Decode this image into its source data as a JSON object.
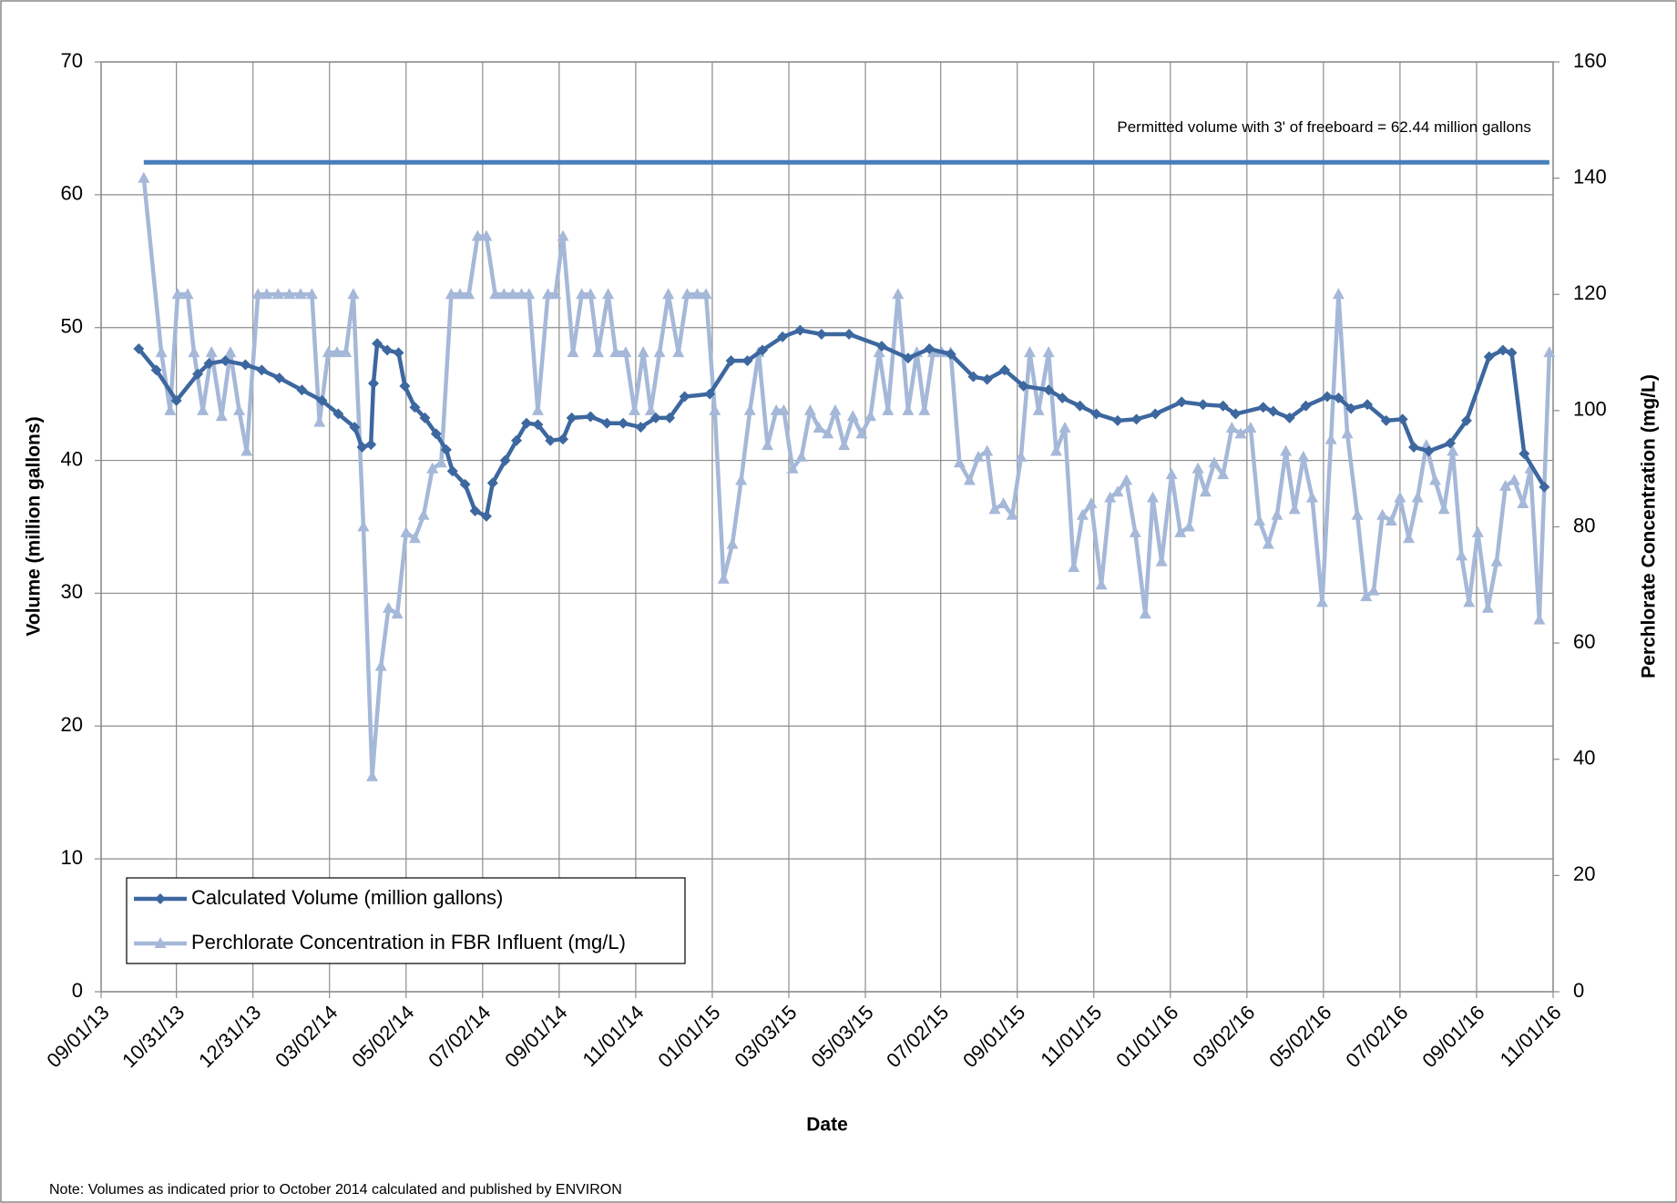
{
  "chart_data": {
    "type": "line",
    "xlabel": "Date",
    "ylabel": "Volume (million gallons)",
    "y2label": "Perchlorate Concentration (mg/L)",
    "note": "Note: Volumes as indicated prior to October 2014 calculated and published by ENVIRON",
    "reference_line": {
      "value": 62.44,
      "label": "Permitted volume with 3' of freeboard = 62.44 million gallons",
      "color": "#4a7ebb"
    },
    "xlim": [
      "09/01/13",
      "11/01/16"
    ],
    "xticks": [
      "09/01/13",
      "10/31/13",
      "12/31/13",
      "03/02/14",
      "05/02/14",
      "07/02/14",
      "09/01/14",
      "11/01/14",
      "01/01/15",
      "03/03/15",
      "05/03/15",
      "07/02/15",
      "09/01/15",
      "11/01/15",
      "01/01/16",
      "03/02/16",
      "05/02/16",
      "07/02/16",
      "09/01/16",
      "11/01/16"
    ],
    "ylim": [
      0,
      70
    ],
    "yticks": [
      0,
      10,
      20,
      30,
      40,
      50,
      60,
      70
    ],
    "y2lim": [
      0,
      160
    ],
    "y2ticks": [
      0,
      20,
      40,
      60,
      80,
      100,
      120,
      140,
      160
    ],
    "grid": true,
    "legend": "bottom-left",
    "series": [
      {
        "name": "Calculated Volume (million gallons)",
        "color": "#3d679f",
        "marker": "diamond",
        "x": [
          "10/01/13",
          "10/15/13",
          "10/31/13",
          "11/17/13",
          "11/26/13",
          "12/09/13",
          "12/25/13",
          "01/07/14",
          "01/21/14",
          "02/08/14",
          "02/24/14",
          "03/09/14",
          "03/22/14",
          "03/28/14",
          "04/04/14",
          "04/06/14",
          "04/09/14",
          "04/17/14",
          "04/26/14",
          "05/01/14",
          "05/09/14",
          "05/17/14",
          "05/26/14",
          "06/03/14",
          "06/08/14",
          "06/18/14",
          "06/26/14",
          "07/05/14",
          "07/10/14",
          "07/20/14",
          "07/29/14",
          "08/06/14",
          "08/15/14",
          "08/25/14",
          "09/04/14",
          "09/11/14",
          "09/26/14",
          "10/09/14",
          "10/22/14",
          "11/05/14",
          "11/17/14",
          "11/28/14",
          "12/10/14",
          "12/30/14",
          "01/16/15",
          "01/29/15",
          "02/10/15",
          "02/26/15",
          "03/12/15",
          "03/29/15",
          "04/20/15",
          "05/16/15",
          "06/06/15",
          "06/23/15",
          "07/10/15",
          "07/28/15",
          "08/08/15",
          "08/22/15",
          "09/06/15",
          "09/26/15",
          "10/07/15",
          "10/21/15",
          "11/03/15",
          "11/20/15",
          "12/05/15",
          "12/20/15",
          "01/10/16",
          "01/27/16",
          "02/12/16",
          "02/22/16",
          "03/15/16",
          "03/23/16",
          "04/05/16",
          "04/18/16",
          "05/05/16",
          "05/14/16",
          "05/24/16",
          "06/06/16",
          "06/21/16",
          "07/04/16",
          "07/13/16",
          "07/25/16",
          "08/11/16",
          "08/24/16",
          "09/11/16",
          "09/22/16",
          "09/29/16",
          "10/09/16",
          "10/25/16"
        ],
        "values": [
          48.4,
          46.8,
          44.5,
          46.5,
          47.3,
          47.5,
          47.2,
          46.8,
          46.2,
          45.3,
          44.5,
          43.5,
          42.5,
          41.0,
          41.2,
          45.8,
          48.8,
          48.3,
          48.1,
          45.6,
          44.0,
          43.2,
          42.0,
          40.8,
          39.2,
          38.2,
          36.2,
          35.8,
          38.3,
          40.0,
          41.5,
          42.8,
          42.7,
          41.5,
          41.6,
          43.2,
          43.3,
          42.8,
          42.8,
          42.5,
          43.2,
          43.2,
          44.8,
          45.0,
          47.5,
          47.5,
          48.3,
          49.3,
          49.8,
          49.5,
          49.5,
          48.6,
          47.7,
          48.4,
          48.0,
          46.3,
          46.1,
          46.8,
          45.6,
          45.3,
          44.7,
          44.1,
          43.5,
          43.0,
          43.1,
          43.5,
          44.4,
          44.2,
          44.1,
          43.5,
          44.0,
          43.7,
          43.2,
          44.1,
          44.8,
          44.7,
          43.9,
          44.2,
          43.0,
          43.1,
          41.0,
          40.7,
          41.3,
          43.0,
          47.8,
          48.3,
          48.1,
          40.5,
          38.0
        ]
      },
      {
        "name": "Perchlorate Concentration in FBR Influent (mg/L)",
        "color": "#a5b8d8",
        "marker": "triangle",
        "axis": "y2",
        "x": [
          "10/05/13",
          "10/19/13",
          "10/26/13",
          "11/01/13",
          "11/09/13",
          "11/14/13",
          "11/21/13",
          "11/28/13",
          "12/06/13",
          "12/13/13",
          "12/20/13",
          "12/26/13",
          "01/04/14",
          "01/11/14",
          "01/20/14",
          "01/29/14",
          "02/07/14",
          "02/16/14",
          "02/22/14",
          "03/01/14",
          "03/08/14",
          "03/15/14",
          "03/21/14",
          "03/29/14",
          "04/05/14",
          "04/12/14",
          "04/18/14",
          "04/25/14",
          "05/02/14",
          "05/09/14",
          "05/16/14",
          "05/23/14",
          "05/30/14",
          "06/07/14",
          "06/14/14",
          "06/21/14",
          "06/28/14",
          "07/05/14",
          "07/12/14",
          "07/19/14",
          "07/26/14",
          "08/02/14",
          "08/08/14",
          "08/15/14",
          "08/23/14",
          "08/29/14",
          "09/04/14",
          "09/12/14",
          "09/19/14",
          "09/26/14",
          "10/02/14",
          "10/10/14",
          "10/16/14",
          "10/24/14",
          "10/31/14",
          "11/07/14",
          "11/13/14",
          "11/20/14",
          "11/27/14",
          "12/05/14",
          "12/12/14",
          "12/20/14",
          "12/27/14",
          "01/03/15",
          "01/10/15",
          "01/17/15",
          "01/24/15",
          "01/31/15",
          "02/07/15",
          "02/14/15",
          "02/21/15",
          "02/27/15",
          "03/06/15",
          "03/13/15",
          "03/20/15",
          "03/27/15",
          "04/03/15",
          "04/09/15",
          "04/16/15",
          "04/23/15",
          "04/30/15",
          "05/07/15",
          "05/14/15",
          "05/21/15",
          "05/29/15",
          "06/06/15",
          "06/13/15",
          "06/19/15",
          "06/26/15",
          "07/03/15",
          "07/10/15",
          "07/17/15",
          "07/25/15",
          "08/01/15",
          "08/08/15",
          "08/14/15",
          "08/21/15",
          "08/28/15",
          "09/04/15",
          "09/11/15",
          "09/18/15",
          "09/26/15",
          "10/02/15",
          "10/09/15",
          "10/16/15",
          "10/23/15",
          "10/30/15",
          "11/07/15",
          "11/14/15",
          "11/20/15",
          "11/27/15",
          "12/04/15",
          "12/12/15",
          "12/18/15",
          "12/25/15",
          "01/02/16",
          "01/09/16",
          "01/16/16",
          "01/23/16",
          "01/29/16",
          "02/05/16",
          "02/12/16",
          "02/19/16",
          "02/26/16",
          "03/05/16",
          "03/12/16",
          "03/19/16",
          "03/26/16",
          "04/02/16",
          "04/09/16",
          "04/16/16",
          "04/23/16",
          "05/01/16",
          "05/08/16",
          "05/14/16",
          "05/21/16",
          "05/29/16",
          "06/05/16",
          "06/11/16",
          "06/18/16",
          "06/25/16",
          "07/02/16",
          "07/09/16",
          "07/16/16",
          "07/23/16",
          "07/30/16",
          "08/06/16",
          "08/13/16",
          "08/20/16",
          "08/26/16",
          "09/02/16",
          "09/10/16",
          "09/17/16",
          "09/24/16",
          "10/01/16",
          "10/08/16",
          "10/14/16",
          "10/21/16",
          "10/29/16"
        ],
        "values": [
          140,
          110,
          100,
          120,
          120,
          110,
          100,
          110,
          99,
          110,
          100,
          93,
          120,
          120,
          120,
          120,
          120,
          120,
          98,
          110,
          110,
          110,
          120,
          80,
          37,
          56,
          66,
          65,
          79,
          78,
          82,
          90,
          91,
          120,
          120,
          120,
          130,
          130,
          120,
          120,
          120,
          120,
          120,
          100,
          120,
          120,
          130,
          110,
          120,
          120,
          110,
          120,
          110,
          110,
          100,
          110,
          100,
          110,
          120,
          110,
          120,
          120,
          120,
          100,
          71,
          77,
          88,
          100,
          110,
          94,
          100,
          100,
          90,
          92,
          100,
          97,
          96,
          100,
          94,
          99,
          96,
          99,
          110,
          100,
          120,
          100,
          110,
          100,
          110,
          110,
          110,
          91,
          88,
          92,
          93,
          83,
          84,
          82,
          92,
          110,
          100,
          110,
          93,
          97,
          73,
          82,
          84,
          70,
          85,
          86,
          88,
          79,
          65,
          85,
          74,
          89,
          79,
          80,
          90,
          86,
          91,
          89,
          97,
          96,
          97,
          81,
          77,
          82,
          93,
          83,
          92,
          85,
          67,
          95,
          120,
          96,
          82,
          68,
          69,
          82,
          81,
          85,
          78,
          85,
          94,
          88,
          83,
          93,
          75,
          67,
          79,
          66,
          74,
          87,
          88,
          84,
          90,
          64,
          110
        ]
      }
    ]
  }
}
